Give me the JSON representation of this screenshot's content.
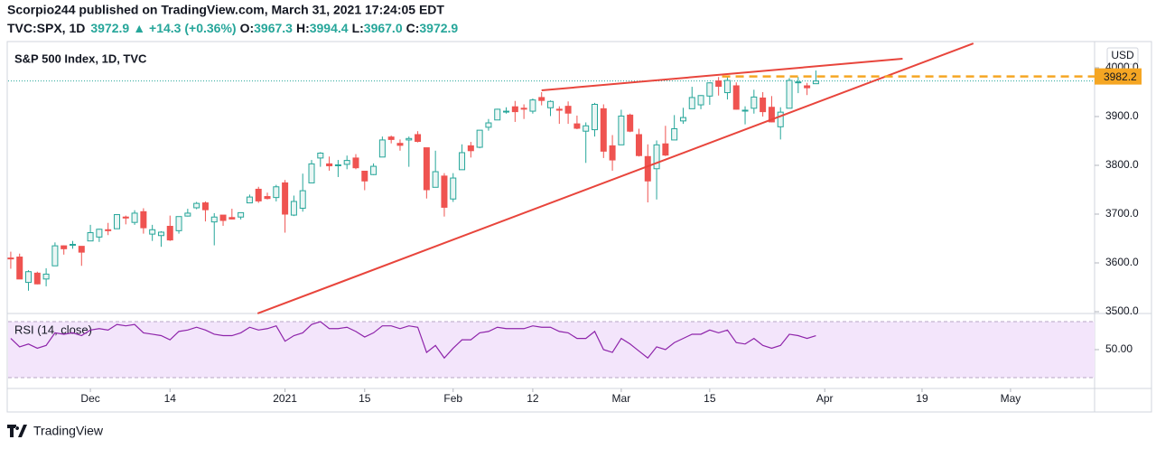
{
  "header": {
    "publisher": "Scorpio244 published on TradingView.com, March 31, 2021 17:24:05 EDT",
    "symbol": "TVC:SPX, 1D",
    "last": "3972.9",
    "arrow": "▲",
    "change": "+14.3 (+0.36%)",
    "o_label": "O:",
    "o": "3967.3",
    "h_label": "H:",
    "h": "3994.4",
    "l_label": "L:",
    "l": "3967.0",
    "c_label": "C:",
    "c": "3972.9"
  },
  "chart_data": {
    "type": "candlestick",
    "title": "S&P 500 Index, 1D, TVC",
    "currency": "USD",
    "up_color": "#26a69a",
    "down_color": "#ef5350",
    "x": [
      0,
      1,
      2,
      3,
      4,
      5,
      6,
      7,
      8,
      9,
      10,
      11,
      12,
      13,
      14,
      15,
      16,
      17,
      18,
      19,
      20,
      21,
      22,
      23,
      24,
      25,
      26,
      27,
      28,
      29,
      30,
      31,
      32,
      33,
      34,
      35,
      36,
      37,
      38,
      39,
      40,
      41,
      42,
      43,
      44,
      45,
      46,
      47,
      48,
      49,
      50,
      51,
      52,
      53,
      54,
      55,
      56,
      57,
      58,
      59,
      60,
      61,
      62,
      63,
      64,
      65,
      66,
      67,
      68,
      69,
      70,
      71,
      72,
      73,
      74,
      75,
      76,
      77,
      78,
      79,
      80,
      81,
      82,
      83,
      84,
      85,
      86,
      87,
      88,
      89,
      90,
      91
    ],
    "open": [
      3610,
      3612,
      3560,
      3579,
      3567,
      3594,
      3635,
      3638,
      3634,
      3645,
      3653,
      3668,
      3670,
      3694,
      3683,
      3705,
      3659,
      3656,
      3675,
      3666,
      3696,
      3713,
      3723,
      3684,
      3698,
      3693,
      3694,
      3723,
      3751,
      3736,
      3734,
      3764,
      3698,
      3712,
      3764,
      3815,
      3803,
      3801,
      3802,
      3815,
      3788,
      3781,
      3817,
      3858,
      3845,
      3852,
      3863,
      3836,
      3755,
      3778,
      3731,
      3791,
      3840,
      3837,
      3878,
      3893,
      3910,
      3920,
      3917,
      3911,
      3939,
      3918,
      3915,
      3921,
      3885,
      3870,
      3873,
      3916,
      3840,
      3842,
      3903,
      3863,
      3818,
      3793,
      3844,
      3852,
      3891,
      3916,
      3924,
      3942,
      3973,
      3949,
      3963,
      3913,
      3917,
      3938,
      3919,
      3879,
      3917,
      3970,
      3963,
      3967.3
    ],
    "high": [
      3623,
      3619,
      3585,
      3582,
      3589,
      3642,
      3636,
      3645,
      3634,
      3678,
      3670,
      3682,
      3699,
      3697,
      3708,
      3712,
      3678,
      3665,
      3697,
      3695,
      3711,
      3725,
      3726,
      3702,
      3698,
      3711,
      3703,
      3740,
      3756,
      3744,
      3760,
      3770,
      3738,
      3783,
      3811,
      3827,
      3818,
      3811,
      3820,
      3823,
      3788,
      3804,
      3859,
      3861,
      3853,
      3859,
      3870,
      3836,
      3830,
      3784,
      3784,
      3843,
      3848,
      3872,
      3895,
      3916,
      3919,
      3932,
      3925,
      3937,
      3950,
      3933,
      3921,
      3931,
      3902,
      3888,
      3928,
      3925,
      3862,
      3914,
      3906,
      3875,
      3843,
      3851,
      3881,
      3903,
      3918,
      3961,
      3944,
      3970,
      3981,
      3984,
      3970,
      3921,
      3955,
      3950,
      3942,
      3919,
      3979,
      3981,
      3969,
      3994.4
    ],
    "low": [
      3588,
      3567,
      3543,
      3556,
      3552,
      3594,
      3617,
      3629,
      3594,
      3645,
      3643,
      3657,
      3670,
      3679,
      3678,
      3660,
      3645,
      3633,
      3645,
      3660,
      3695,
      3710,
      3685,
      3636,
      3676,
      3689,
      3689,
      3723,
      3723,
      3730,
      3726,
      3662,
      3696,
      3705,
      3764,
      3797,
      3789,
      3776,
      3792,
      3792,
      3749,
      3780,
      3817,
      3845,
      3830,
      3797,
      3847,
      3732,
      3755,
      3695,
      3725,
      3791,
      3816,
      3835,
      3871,
      3893,
      3906,
      3889,
      3895,
      3906,
      3923,
      3901,
      3885,
      3885,
      3874,
      3805,
      3859,
      3815,
      3789,
      3842,
      3868,
      3818,
      3724,
      3730,
      3819,
      3852,
      3885,
      3916,
      3915,
      3924,
      3943,
      3935,
      3914,
      3884,
      3906,
      3900,
      3888,
      3853,
      3917,
      3948,
      3944,
      3967
    ],
    "close": [
      3609,
      3567,
      3582,
      3557,
      3577,
      3635,
      3629,
      3638,
      3622,
      3662,
      3669,
      3666,
      3699,
      3692,
      3702,
      3672,
      3668,
      3663,
      3647,
      3695,
      3702,
      3722,
      3709,
      3694,
      3687,
      3690,
      3703,
      3735,
      3727,
      3732,
      3756,
      3700,
      3726,
      3748,
      3803,
      3825,
      3799,
      3801,
      3810,
      3795,
      3768,
      3798,
      3852,
      3853,
      3841,
      3855,
      3849,
      3750,
      3787,
      3714,
      3774,
      3826,
      3830,
      3872,
      3887,
      3915,
      3911,
      3910,
      3916,
      3934,
      3933,
      3931,
      3913,
      3907,
      3876,
      3881,
      3925,
      3829,
      3811,
      3901,
      3870,
      3820,
      3768,
      3842,
      3821,
      3875,
      3898,
      3939,
      3943,
      3969,
      3962,
      3974,
      3915,
      3913,
      3940,
      3910,
      3889,
      3909,
      3974,
      3971,
      3959,
      3972.9
    ],
    "xlim": [
      -0.4,
      122.5
    ],
    "xticks": [
      {
        "value": 9,
        "label": "Dec"
      },
      {
        "value": 18,
        "label": "14"
      },
      {
        "value": 31,
        "label": "2021"
      },
      {
        "value": 40,
        "label": "15"
      },
      {
        "value": 50,
        "label": "Feb"
      },
      {
        "value": 59,
        "label": "12"
      },
      {
        "value": 69,
        "label": "Mar"
      },
      {
        "value": 79,
        "label": "15"
      },
      {
        "value": 92,
        "label": "Apr"
      },
      {
        "value": 103,
        "label": "19"
      },
      {
        "value": 113,
        "label": "May"
      }
    ],
    "ylim": [
      3500,
      4042.6
    ],
    "yticks": [
      {
        "value": 3500,
        "label": "3500.0"
      },
      {
        "value": 3600,
        "label": "3600.0"
      },
      {
        "value": 3700,
        "label": "3700.0"
      },
      {
        "value": 3800,
        "label": "3800.0"
      },
      {
        "value": 3900,
        "label": "3900.0"
      },
      {
        "value": 4000,
        "label": "4000.0"
      }
    ],
    "trend_lines": [
      {
        "points": [
          [
            60.0,
            3953.7
          ],
          [
            100.8,
            4018.5
          ]
        ],
        "color": "#e8453c"
      },
      {
        "points": [
          [
            27.9,
            3496.3
          ],
          [
            108.8,
            4050
          ]
        ],
        "color": "#e8453c"
      }
    ],
    "horizontal_line": {
      "value": 3982.2,
      "start": 80.4,
      "color": "#f5a623"
    },
    "rsi": {
      "title": "RSI (14, close)",
      "color": "#8e24aa",
      "band": [
        30,
        70
      ],
      "band_color": "#f3e5fb",
      "ylim": [
        23.5,
        73.9
      ],
      "yticks": [
        {
          "value": 50,
          "label": "50.00"
        }
      ],
      "values": [
        58,
        52,
        54,
        51,
        53,
        62,
        61,
        62,
        60,
        64,
        65,
        64,
        68,
        67,
        68,
        62,
        61,
        60,
        57,
        63,
        64,
        66,
        64,
        61,
        60,
        60,
        62,
        66,
        64,
        65,
        67,
        56,
        60,
        62,
        68,
        70,
        65,
        65,
        66,
        63,
        59,
        62,
        67,
        67,
        65,
        67,
        66,
        48,
        53,
        44,
        51,
        57,
        57,
        62,
        63,
        66,
        65,
        65,
        65,
        67,
        66,
        66,
        63,
        62,
        58,
        58,
        63,
        50,
        48,
        58,
        54,
        49,
        44,
        52,
        50,
        55,
        58,
        61,
        61,
        64,
        62,
        64,
        55,
        54,
        58,
        53,
        51,
        53,
        61,
        60,
        58,
        60
      ]
    }
  },
  "footer": {
    "brand": "TradingView"
  }
}
